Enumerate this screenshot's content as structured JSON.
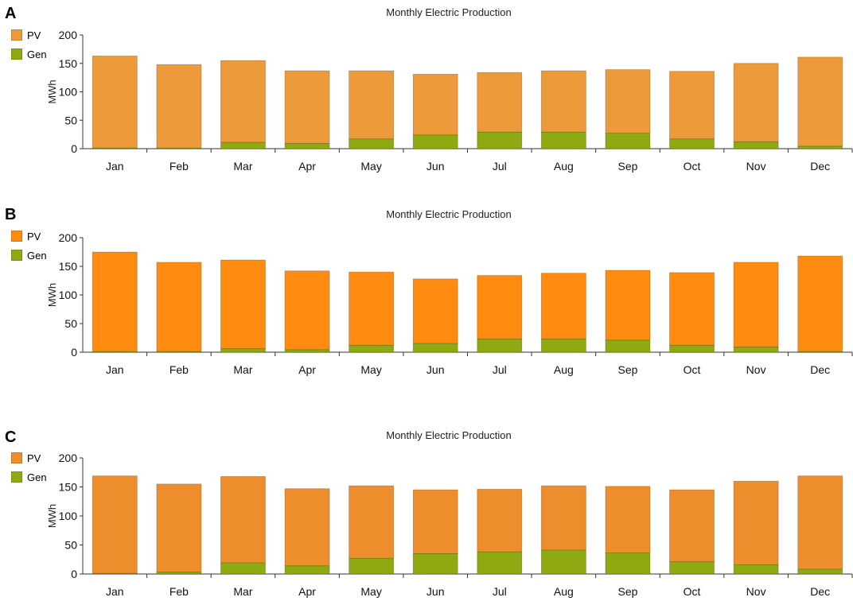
{
  "colors": {
    "pv_a": "#EC9A3A",
    "pv_b": "#FF8B10",
    "pv_c": "#EE8D2C",
    "gen": "#8FAA10",
    "axis": "#333333"
  },
  "chart_data": [
    {
      "panel": "A",
      "type": "bar",
      "stacked": true,
      "title": "Monthly Electric Production",
      "ylabel": "MWh",
      "ylim": [
        0,
        200
      ],
      "yticks": [
        0,
        50,
        100,
        150,
        200
      ],
      "categories": [
        "Jan",
        "Feb",
        "Mar",
        "Apr",
        "May",
        "Jun",
        "Jul",
        "Aug",
        "Sep",
        "Oct",
        "Nov",
        "Dec"
      ],
      "legend_position": "top-left",
      "series": [
        {
          "name": "PV",
          "values": [
            162,
            147,
            144,
            128,
            120,
            107,
            105,
            108,
            112,
            119,
            138,
            157
          ]
        },
        {
          "name": "Gen",
          "values": [
            1,
            1,
            11,
            9,
            17,
            24,
            29,
            29,
            27,
            17,
            12,
            4
          ]
        }
      ]
    },
    {
      "panel": "B",
      "type": "bar",
      "stacked": true,
      "title": "Monthly Electric Production",
      "ylabel": "MWh",
      "ylim": [
        0,
        200
      ],
      "yticks": [
        0,
        50,
        100,
        150,
        200
      ],
      "categories": [
        "Jan",
        "Feb",
        "Mar",
        "Apr",
        "May",
        "Jun",
        "Jul",
        "Aug",
        "Sep",
        "Oct",
        "Nov",
        "Dec"
      ],
      "legend_position": "top-left",
      "series": [
        {
          "name": "PV",
          "values": [
            174,
            156,
            155,
            138,
            128,
            113,
            111,
            115,
            122,
            127,
            148,
            167
          ]
        },
        {
          "name": "Gen",
          "values": [
            1,
            1,
            6,
            4,
            12,
            15,
            23,
            23,
            21,
            12,
            9,
            1
          ]
        }
      ]
    },
    {
      "panel": "C",
      "type": "bar",
      "stacked": true,
      "title": "Monthly Electric Production",
      "ylabel": "MWh",
      "ylim": [
        0,
        200
      ],
      "yticks": [
        0,
        50,
        100,
        150,
        200
      ],
      "categories": [
        "Jan",
        "Feb",
        "Mar",
        "Apr",
        "May",
        "Jun",
        "Jul",
        "Aug",
        "Sep",
        "Oct",
        "Nov",
        "Dec"
      ],
      "legend_position": "top-left",
      "series": [
        {
          "name": "PV",
          "values": [
            168,
            152,
            149,
            133,
            125,
            110,
            108,
            111,
            115,
            124,
            144,
            161
          ]
        },
        {
          "name": "Gen",
          "values": [
            1,
            3,
            19,
            14,
            27,
            35,
            38,
            41,
            36,
            21,
            16,
            8
          ]
        }
      ]
    }
  ]
}
